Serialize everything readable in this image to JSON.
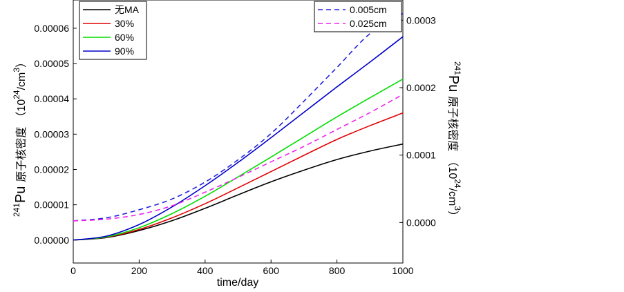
{
  "chart_data": {
    "type": "line",
    "xlabel": "time/day",
    "x_ticks": [
      "0",
      "200",
      "400",
      "600",
      "800",
      "1000"
    ],
    "xlim": [
      0,
      1000
    ],
    "ylabel_left": {
      "isotope_sup": "241",
      "isotope": "Pu",
      "cjk": "原子核密度",
      "unit_open": "（10",
      "unit_sup1": "24",
      "unit_mid": "/cm",
      "unit_sup2": "3",
      "unit_close": "）"
    },
    "ylabel_right": {
      "isotope_sup": "241",
      "isotope": "Pu",
      "cjk": "原子核密度",
      "unit_open": "（10",
      "unit_sup1": "24",
      "unit_mid": "/cm",
      "unit_sup2": "3",
      "unit_close": "）"
    },
    "y_left_ticks": [
      "0.00000",
      "0.00001",
      "0.00002",
      "0.00003",
      "0.00004",
      "0.00005",
      "0.00006"
    ],
    "ylim_left": [
      -6.5e-06,
      6.8e-05
    ],
    "y_right_ticks": [
      "0.0000",
      "0.0001",
      "0.0002",
      "0.0003"
    ],
    "ylim_right": [
      -6e-05,
      0.00033
    ],
    "x": [
      0,
      100,
      200,
      300,
      400,
      500,
      600,
      700,
      800,
      900,
      1000
    ],
    "series": [
      {
        "name": "无MA",
        "axis": "left",
        "color": "#000000",
        "dash": false,
        "values": [
          0,
          7e-07,
          2.7e-06,
          5.5e-06,
          9e-06,
          1.28e-05,
          1.65e-05,
          1.98e-05,
          2.28e-05,
          2.52e-05,
          2.72e-05
        ]
      },
      {
        "name": "30%",
        "axis": "left",
        "color": "#e00000",
        "dash": false,
        "values": [
          0,
          8e-07,
          3e-06,
          6.3e-06,
          1.03e-05,
          1.48e-05,
          1.94e-05,
          2.4e-05,
          2.85e-05,
          3.24e-05,
          3.6e-05
        ]
      },
      {
        "name": "60%",
        "axis": "left",
        "color": "#00dd00",
        "dash": false,
        "values": [
          0,
          9e-07,
          3.5e-06,
          7.5e-06,
          1.24e-05,
          1.79e-05,
          2.35e-05,
          2.92e-05,
          3.49e-05,
          4.03e-05,
          4.56e-05
        ]
      },
      {
        "name": "90%",
        "axis": "left",
        "color": "#0000cc",
        "dash": false,
        "values": [
          0,
          1.1e-06,
          4.4e-06,
          9.4e-06,
          1.54e-05,
          2.2e-05,
          2.9e-05,
          3.62e-05,
          4.34e-05,
          5.04e-05,
          5.76e-05
        ]
      },
      {
        "name": "0.005cm",
        "axis": "right",
        "color": "#2222dd",
        "dash": true,
        "values": [
          2.5e-06,
          7e-06,
          1.9e-05,
          3.5e-05,
          6e-05,
          9.3e-05,
          0.000132,
          0.00018,
          0.00023,
          0.00028,
          0.00031
        ]
      },
      {
        "name": "0.025cm",
        "axis": "right",
        "color": "#ee22ee",
        "dash": true,
        "values": [
          2.5e-06,
          5e-06,
          1.2e-05,
          2.5e-05,
          4.5e-05,
          6.7e-05,
          9e-05,
          0.000113,
          0.000138,
          0.000163,
          0.00019
        ]
      }
    ],
    "legend_left": [
      "无MA",
      "30%",
      "60%",
      "90%"
    ],
    "legend_right": [
      "0.005cm",
      "0.025cm"
    ],
    "grid": false
  }
}
